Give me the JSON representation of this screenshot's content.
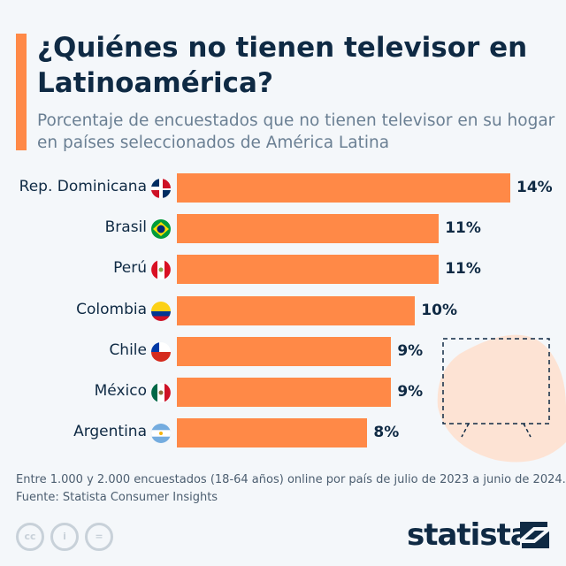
{
  "header": {
    "title": "¿Quiénes no tienen televisor en Latinoamérica?",
    "subtitle": "Porcentaje de encuestados que no tienen televisor en su hogar en países seleccionados de América Latina"
  },
  "chart_data": {
    "type": "bar",
    "orientation": "horizontal",
    "categories": [
      "Rep. Dominicana",
      "Brasil",
      "Perú",
      "Colombia",
      "Chile",
      "México",
      "Argentina"
    ],
    "values": [
      14,
      11,
      11,
      10,
      9,
      9,
      8
    ],
    "data_labels": [
      "14%",
      "11%",
      "11%",
      "10%",
      "9%",
      "9%",
      "8%"
    ],
    "flags": [
      "dominican-republic-flag-icon",
      "brazil-flag-icon",
      "peru-flag-icon",
      "colombia-flag-icon",
      "chile-flag-icon",
      "mexico-flag-icon",
      "argentina-flag-icon"
    ],
    "bar_color": "#ff8947",
    "grid": false,
    "xlim": [
      0,
      14
    ]
  },
  "footer": {
    "note": "Entre 1.000 y 2.000 encuestados (18-64 años) online por país de julio de 2023 a junio de 2024.",
    "source": "Fuente: Statista Consumer Insights",
    "logo": "statista",
    "cc_icons": [
      "cc",
      "by",
      "nd"
    ]
  }
}
